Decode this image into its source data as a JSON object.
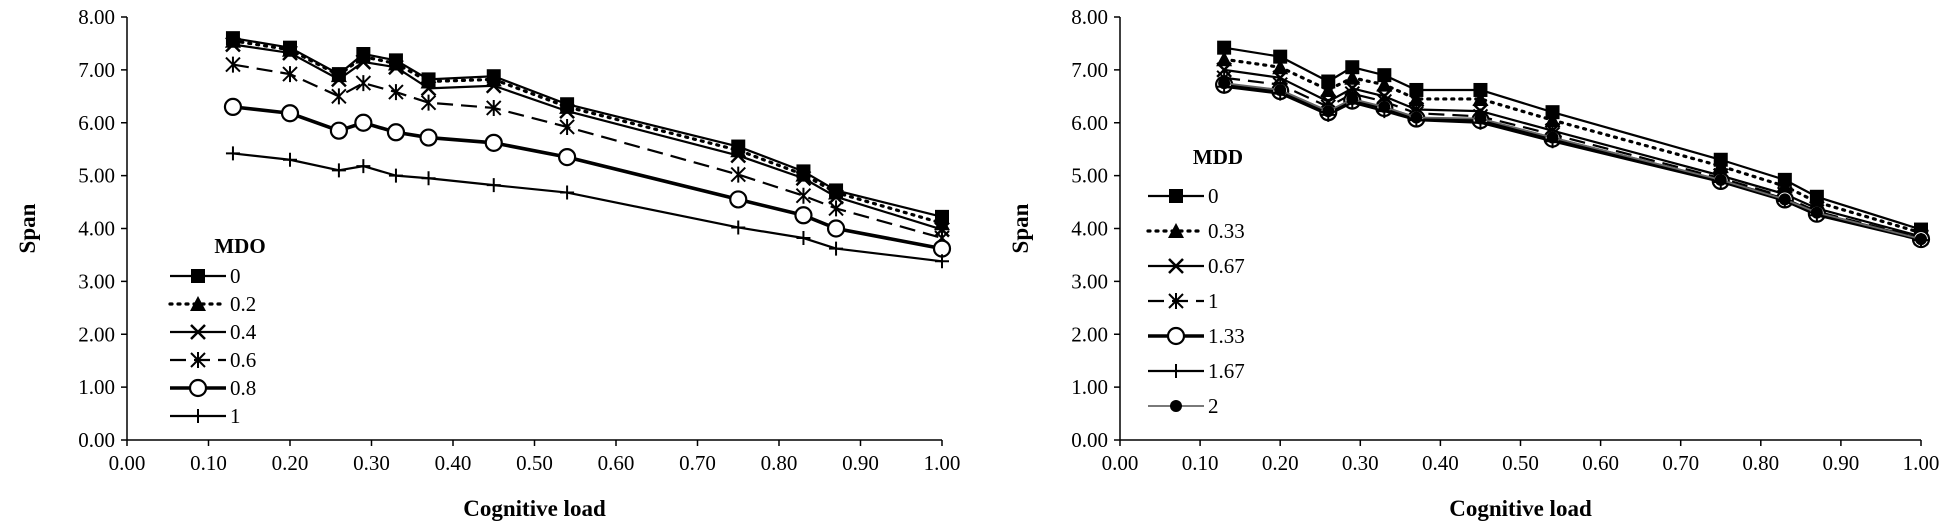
{
  "chart_data": [
    {
      "type": "line",
      "xlabel": "Cognitive load",
      "ylabel": "Span",
      "xlim": [
        0,
        1
      ],
      "ylim": [
        0,
        8
      ],
      "x_ticks": [
        "0.00",
        "0.10",
        "0.20",
        "0.30",
        "0.40",
        "0.50",
        "0.60",
        "0.70",
        "0.80",
        "0.90",
        "1.00"
      ],
      "y_ticks": [
        "0.00",
        "1.00",
        "2.00",
        "3.00",
        "4.00",
        "5.00",
        "6.00",
        "7.00",
        "8.00"
      ],
      "legend_title": "MDO",
      "legend_position": "bottom-left",
      "x": [
        0.13,
        0.2,
        0.26,
        0.29,
        0.33,
        0.37,
        0.45,
        0.54,
        0.75,
        0.83,
        0.87,
        1.0
      ],
      "series": [
        {
          "name": "0",
          "marker": "square",
          "line": "solid",
          "values": [
            7.6,
            7.42,
            6.92,
            7.3,
            7.18,
            6.82,
            6.88,
            6.35,
            5.55,
            5.08,
            4.72,
            4.22
          ]
        },
        {
          "name": "0.2",
          "marker": "triangle",
          "line": "dotted",
          "values": [
            7.55,
            7.38,
            6.9,
            7.25,
            7.12,
            6.78,
            6.82,
            6.3,
            5.48,
            5.02,
            4.68,
            4.1
          ]
        },
        {
          "name": "0.4",
          "marker": "x",
          "line": "solid",
          "values": [
            7.48,
            7.32,
            6.82,
            7.15,
            7.05,
            6.65,
            6.7,
            6.22,
            5.38,
            4.95,
            4.6,
            3.98
          ]
        },
        {
          "name": "0.6",
          "marker": "asterisk",
          "line": "dashed",
          "values": [
            7.1,
            6.92,
            6.5,
            6.75,
            6.58,
            6.38,
            6.28,
            5.92,
            5.02,
            4.62,
            4.38,
            3.82
          ]
        },
        {
          "name": "0.8",
          "marker": "circle-open",
          "line": "thick",
          "values": [
            6.3,
            6.18,
            5.85,
            6.0,
            5.82,
            5.72,
            5.62,
            5.35,
            4.55,
            4.25,
            4.0,
            3.62
          ]
        },
        {
          "name": "1",
          "marker": "plus",
          "line": "solid",
          "values": [
            5.42,
            5.3,
            5.1,
            5.18,
            5.0,
            4.95,
            4.82,
            4.68,
            4.02,
            3.82,
            3.62,
            3.38
          ]
        }
      ]
    },
    {
      "type": "line",
      "xlabel": "Cognitive load",
      "ylabel": "Span",
      "xlim": [
        0,
        1
      ],
      "ylim": [
        0,
        8
      ],
      "x_ticks": [
        "0.00",
        "0.10",
        "0.20",
        "0.30",
        "0.40",
        "0.50",
        "0.60",
        "0.70",
        "0.80",
        "0.90",
        "1.00"
      ],
      "y_ticks": [
        "0.00",
        "1.00",
        "2.00",
        "3.00",
        "4.00",
        "5.00",
        "6.00",
        "7.00",
        "8.00"
      ],
      "legend_title": "MDD",
      "legend_position": "left",
      "x": [
        0.13,
        0.2,
        0.26,
        0.29,
        0.33,
        0.37,
        0.45,
        0.54,
        0.75,
        0.83,
        0.87,
        1.0
      ],
      "series": [
        {
          "name": "0",
          "marker": "square",
          "line": "solid",
          "values": [
            7.42,
            7.25,
            6.78,
            7.05,
            6.9,
            6.62,
            6.62,
            6.2,
            5.3,
            4.92,
            4.6,
            3.98
          ]
        },
        {
          "name": "0.33",
          "marker": "triangle",
          "line": "dotted",
          "values": [
            7.2,
            7.05,
            6.62,
            6.85,
            6.72,
            6.45,
            6.45,
            6.05,
            5.18,
            4.8,
            4.5,
            3.92
          ]
        },
        {
          "name": "0.67",
          "marker": "x",
          "line": "solid",
          "values": [
            7.0,
            6.85,
            6.4,
            6.65,
            6.5,
            6.25,
            6.22,
            5.85,
            5.0,
            4.65,
            4.38,
            3.85
          ]
        },
        {
          "name": "1",
          "marker": "asterisk",
          "line": "dashed",
          "values": [
            6.85,
            6.72,
            6.3,
            6.55,
            6.4,
            6.18,
            6.12,
            5.78,
            4.95,
            4.6,
            4.32,
            3.82
          ]
        },
        {
          "name": "1.33",
          "marker": "circle-open",
          "line": "thick",
          "values": [
            6.72,
            6.6,
            6.2,
            6.42,
            6.28,
            6.08,
            6.05,
            5.7,
            4.9,
            4.55,
            4.28,
            3.8
          ]
        },
        {
          "name": "1.67",
          "marker": "plus",
          "line": "solid",
          "values": [
            6.68,
            6.55,
            6.15,
            6.38,
            6.22,
            6.05,
            6.0,
            5.65,
            4.88,
            4.52,
            4.25,
            3.78
          ]
        },
        {
          "name": "2",
          "marker": "circle",
          "line": "solid-gray",
          "values": [
            6.75,
            6.62,
            6.22,
            6.45,
            6.3,
            6.1,
            6.08,
            5.72,
            4.92,
            4.55,
            4.3,
            3.8
          ]
        }
      ]
    }
  ]
}
